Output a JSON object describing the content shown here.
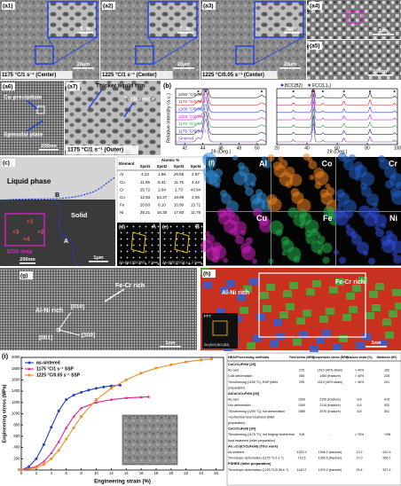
{
  "panels": {
    "a1": {
      "label": "(a1)",
      "scale_small": "5μm",
      "scale_large": "20μm",
      "caption": "1175 °C/1 s⁻¹ (Center)"
    },
    "a2": {
      "label": "(a2)",
      "scale_small": "5μm",
      "scale_large": "20μm",
      "caption": "1225 °C/1 s⁻¹ (Center)"
    },
    "a3": {
      "label": "(a3)",
      "scale_small": "5μm",
      "scale_large": "20μm",
      "caption": "1225 °C/0.05 s⁻¹ (Center)"
    },
    "a4": {
      "label": "(a4)",
      "scale": "3μm"
    },
    "a5": {
      "label": "(a5)",
      "scale": "500nm"
    },
    "a6": {
      "label": "(a6)",
      "notes": [
        "Cu precipitate",
        "Spinodal plate"
      ],
      "scale": "200nm"
    },
    "a7": {
      "label": "(a7)",
      "notes": [
        "Thicker liquid film",
        "Turbulence"
      ],
      "caption": "1175 °C/1 s⁻¹ (Outer)"
    },
    "c": {
      "label": "(c)",
      "notes": [
        "Liquid phase",
        "Solid"
      ],
      "points": [
        "A",
        "B"
      ],
      "spots": [
        "+1",
        "+2",
        "+3",
        "+4"
      ],
      "box": "EDS map",
      "scale_small": "200nm",
      "scale_large": "1μm"
    },
    "d": {
      "label": "(d)",
      "letter": "A",
      "zone": "ZA=[011] BCC(B2)",
      "scale": "2 1/nm"
    },
    "e": {
      "label": "(e)",
      "letter": "B",
      "zone": "ZA=[001] FCC(L1₂)",
      "scale": "2 1/nm"
    },
    "f": {
      "label": "(f)",
      "elements": [
        "Al",
        "Co",
        "Cr",
        "Cu",
        "Fe",
        "Ni"
      ],
      "colors": [
        "#2f8fd8",
        "#f0821e",
        "#2060c8",
        "#d020c0",
        "#22b04a",
        "#3050e0"
      ]
    },
    "g": {
      "label": "(g)",
      "notes": [
        "Al-Ni rich",
        "Fe-Cr rich"
      ],
      "directions": [
        "[010]",
        "[001]",
        "[100]"
      ],
      "scale": "1nm"
    },
    "h": {
      "label": "(h)",
      "notes": [
        "Al-Ni rich",
        "Fe-Cr rich"
      ],
      "fft": "FFT",
      "zone": "ZA=[001] BCC(B2)",
      "scale": "1nm"
    }
  },
  "eds_table": {
    "header": [
      "Element",
      "Atomic %"
    ],
    "spots": [
      "Spot1",
      "Spot2",
      "Spot3",
      "Spot4"
    ],
    "rows": [
      [
        "Al",
        "4.23",
        "1.96",
        "29.55",
        "2.97"
      ],
      [
        "Cu",
        "11.95",
        "5.31",
        "11.75",
        "4.42"
      ],
      [
        "Cr",
        "25.72",
        "2.94",
        "2.73",
        "43.84"
      ],
      [
        "Co",
        "12.93",
        "64.37",
        "19.99",
        "2.06"
      ],
      [
        "Fe",
        "20.83",
        "8.10",
        "10.80",
        "13.71"
      ],
      [
        "Ni",
        "25.21",
        "16.35",
        "17.60",
        "11.78"
      ]
    ]
  },
  "xrd": {
    "type": "line",
    "label": "(b)",
    "legend": [
      "BCC(B2)",
      "FCC(L1₂)"
    ],
    "legend_colors": [
      "#1f3fbf",
      "#1f3fbf"
    ],
    "xlabel": "2θ (Deg.)",
    "ylabel": "Relative intensity (a.u.)",
    "zoom": {
      "xlim": [
        41,
        51
      ],
      "xticks": [
        42,
        44,
        46,
        48,
        50
      ]
    },
    "full": {
      "xlim": [
        20,
        100
      ],
      "xticks": [
        20,
        40,
        60,
        80,
        100
      ]
    },
    "peaks": [
      31.0,
      43.5,
      44.3,
      50.5,
      64.5,
      81.8,
      98.0
    ],
    "peak_heights": [
      0.12,
      0.18,
      1,
      0.1,
      0.22,
      0.3,
      0.1
    ],
    "series": [
      {
        "name": "1250 °C/0.05 s⁻¹",
        "color": "#222222"
      },
      {
        "name": "1175 °C/0.05 s⁻¹",
        "color": "#e02020"
      },
      {
        "name": "1200 °C/0.05 s⁻¹",
        "color": "#2040e0"
      },
      {
        "name": "1225 °C/0.05 s⁻¹",
        "color": "#d020d0"
      },
      {
        "name": "1175 °C/1 s⁻¹",
        "color": "#20a040"
      },
      {
        "name": "1175 °C/0.5 s⁻¹",
        "color": "#202090"
      },
      {
        "name": "Sintered",
        "color": "#8030b0"
      }
    ]
  },
  "chart_data": {
    "type": "line",
    "label": "(i)",
    "xlabel": "Engineering strain (%)",
    "ylabel": "Engineering stress (MPa)",
    "xlim": [
      0,
      27
    ],
    "xticks": [
      0,
      2,
      4,
      6,
      8,
      10,
      12,
      14,
      16,
      18,
      20,
      22,
      24,
      26
    ],
    "ylim": [
      0,
      2000
    ],
    "yticks": [
      0,
      200,
      400,
      600,
      800,
      1000,
      1200,
      1400,
      1600,
      1800,
      2000
    ],
    "series": [
      {
        "name": "as-sintered",
        "color": "#1f3fbf",
        "marker": "circle",
        "x": [
          0,
          1,
          2,
          3,
          4,
          5,
          6,
          7,
          8,
          9,
          10,
          11,
          12,
          13.2
        ],
        "values": [
          0,
          60,
          200,
          450,
          760,
          1050,
          1250,
          1330,
          1380,
          1420,
          1450,
          1475,
          1495,
          1506
        ]
      },
      {
        "name": "1175 °C/1 s⁻¹ SSP",
        "color": "#e0218a",
        "marker": "triangle",
        "x": [
          0,
          2,
          3,
          4,
          5,
          6,
          7,
          8,
          10,
          12,
          14,
          16,
          17
        ],
        "values": [
          0,
          60,
          150,
          300,
          500,
          750,
          950,
          1100,
          1200,
          1250,
          1280,
          1295,
          1300
        ]
      },
      {
        "name": "1225 °C/0.05 s⁻¹ SSP",
        "color": "#f28e1c",
        "marker": "square",
        "x": [
          0,
          2,
          3,
          4,
          5,
          6,
          7,
          8,
          10,
          12,
          14,
          16,
          18,
          20,
          22,
          24,
          25.4
        ],
        "values": [
          0,
          40,
          100,
          200,
          350,
          550,
          750,
          950,
          1250,
          1450,
          1600,
          1720,
          1810,
          1870,
          1920,
          1955,
          1970
        ]
      }
    ]
  },
  "property_table": {
    "header": [
      "HEA/Processing methods",
      "Yield stress (MPa)",
      "Compressive stress (MPa)",
      "Fracture strain (%)",
      "Hardness (HV)"
    ],
    "rows": [
      {
        "section": "CoCrCuFeNi [25]"
      },
      {
        "method": [
          "As cast"
        ],
        "values": [
          "275",
          "1510 (40% strain)",
          "> 40%",
          "162"
        ]
      },
      {
        "method": [
          "Cold deformation"
        ],
        "values": [
          "468",
          "1450 (fracture)",
          "> 40%",
          "226"
        ]
      },
      {
        "method": [
          "Thixoforming (1150 °C), RAP (billet",
          "preparation)"
        ],
        "values": [
          "295",
          "1010 (40% strain)",
          "> 40%",
          "201"
        ]
      },
      {
        "section": "AlCoCrCuFeNi [29]"
      },
      {
        "method": [
          "As cast"
        ],
        "values": [
          "1300",
          "2100 (fracture)",
          "8.8",
          "415"
        ]
      },
      {
        "method": [
          "Hot deformation"
        ],
        "values": [
          "1300",
          "2110 (fracture)",
          "5.8",
          "520"
        ]
      },
      {
        "method": [
          "Thixoforming (1250 °C), hot deformation",
          "+isothermal heat treatment (billet",
          "preparation)"
        ],
        "values": [
          "1580",
          "2070 (fracture)",
          "6.8",
          "501"
        ]
      },
      {
        "section": "CoCrCuFeNi [30]"
      },
      {
        "method": [
          "Thixoforming (1175 °C), hot forging+isothermal",
          "heat treatment (billet preparation)"
        ],
        "values": [
          "318",
          "-",
          "> 70%",
          "~198"
        ]
      },
      {
        "section": "Al₀.₃Co(CrCuFeNi) (This work)"
      },
      {
        "method": [
          "As sintered"
        ],
        "values": [
          "1322.9",
          "1506.2 (fracture)",
          "13.2",
          "612.5"
        ]
      },
      {
        "method": [
          "Thixotropic deformation (1175 °C/1 s⁻¹)"
        ],
        "values": [
          "713.5",
          "1300.5 (fracture)",
          "17.0",
          "565.7"
        ]
      },
      {
        "section": "PSHEE (billet preparation)"
      },
      {
        "method": [
          "Thixotropic deformation (1225 °C/0.05 s⁻¹)"
        ],
        "values": [
          "1140.2",
          "1970.2 (fracture)",
          "25.4",
          "527.4"
        ]
      }
    ]
  }
}
